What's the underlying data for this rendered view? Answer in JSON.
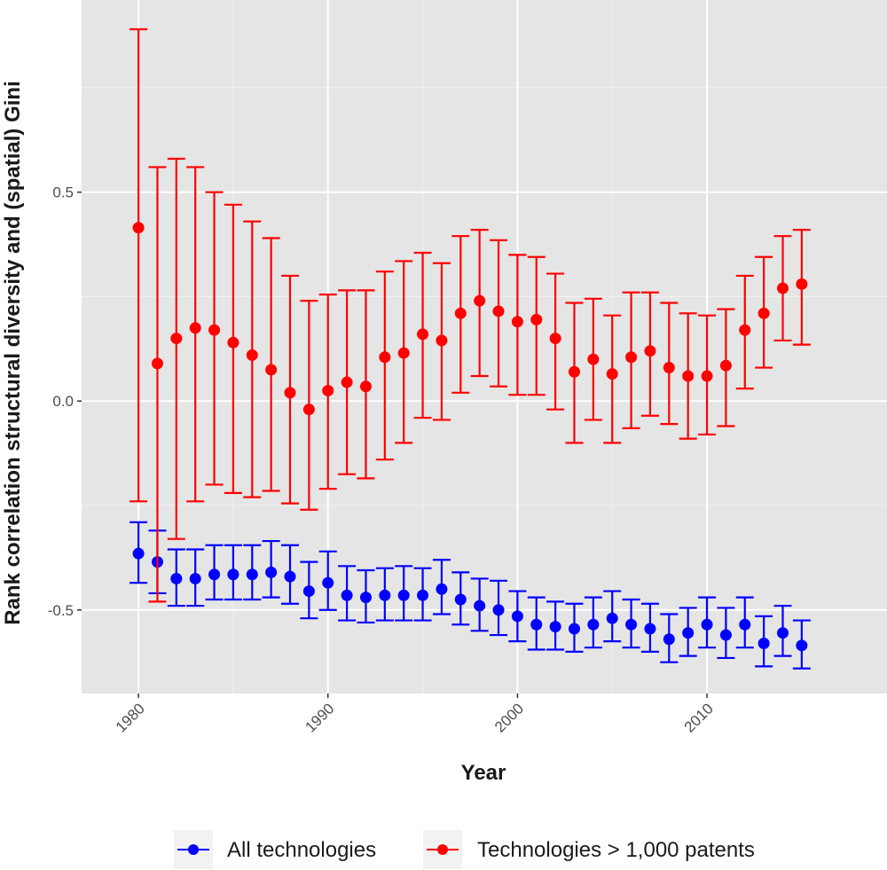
{
  "chart_data": {
    "type": "scatter",
    "title": "",
    "xlabel": "Year",
    "ylabel": "Rank correlation structural diversity and (spatial) Gini",
    "xlim": [
      1977,
      2019.5
    ],
    "ylim": [
      -0.7,
      0.96
    ],
    "x_ticks": [
      1980,
      1990,
      2000,
      2010
    ],
    "y_ticks": [
      0.5,
      0.0,
      -0.5
    ],
    "y_tick_labels": [
      "0.5",
      "0.0",
      "-0.5"
    ],
    "grid": true,
    "legend_position": "bottom",
    "x": [
      1980,
      1981,
      1982,
      1983,
      1984,
      1985,
      1986,
      1987,
      1988,
      1989,
      1990,
      1991,
      1992,
      1993,
      1994,
      1995,
      1996,
      1997,
      1998,
      1999,
      2000,
      2001,
      2002,
      2003,
      2004,
      2005,
      2006,
      2007,
      2008,
      2009,
      2010,
      2011,
      2012,
      2013,
      2014,
      2015
    ],
    "series": [
      {
        "name": "All technologies",
        "color": "#0000ff",
        "values": [
          -0.365,
          -0.385,
          -0.425,
          -0.425,
          -0.415,
          -0.415,
          -0.415,
          -0.41,
          -0.42,
          -0.455,
          -0.435,
          -0.465,
          -0.47,
          -0.465,
          -0.465,
          -0.465,
          -0.45,
          -0.475,
          -0.49,
          -0.5,
          -0.515,
          -0.535,
          -0.54,
          -0.545,
          -0.535,
          -0.52,
          -0.535,
          -0.545,
          -0.57,
          -0.555,
          -0.535,
          -0.56,
          -0.535,
          -0.58,
          -0.555,
          -0.585
        ],
        "lower": [
          -0.435,
          -0.46,
          -0.49,
          -0.49,
          -0.475,
          -0.475,
          -0.475,
          -0.47,
          -0.485,
          -0.52,
          -0.5,
          -0.525,
          -0.53,
          -0.525,
          -0.525,
          -0.525,
          -0.51,
          -0.535,
          -0.55,
          -0.56,
          -0.575,
          -0.595,
          -0.595,
          -0.6,
          -0.59,
          -0.575,
          -0.59,
          -0.6,
          -0.625,
          -0.61,
          -0.59,
          -0.615,
          -0.59,
          -0.635,
          -0.61,
          -0.64
        ],
        "upper": [
          -0.29,
          -0.31,
          -0.355,
          -0.355,
          -0.345,
          -0.345,
          -0.345,
          -0.335,
          -0.345,
          -0.385,
          -0.36,
          -0.395,
          -0.405,
          -0.4,
          -0.395,
          -0.4,
          -0.38,
          -0.41,
          -0.425,
          -0.43,
          -0.455,
          -0.47,
          -0.48,
          -0.485,
          -0.47,
          -0.455,
          -0.475,
          -0.485,
          -0.51,
          -0.495,
          -0.47,
          -0.495,
          -0.47,
          -0.515,
          -0.49,
          -0.525
        ]
      },
      {
        "name": "Technologies > 1,000 patents",
        "color": "#ff0000",
        "values": [
          0.415,
          0.09,
          0.15,
          0.175,
          0.17,
          0.14,
          0.11,
          0.075,
          0.02,
          -0.02,
          0.025,
          0.045,
          0.035,
          0.105,
          0.115,
          0.16,
          0.145,
          0.21,
          0.24,
          0.215,
          0.19,
          0.195,
          0.15,
          0.07,
          0.1,
          0.065,
          0.105,
          0.12,
          0.08,
          0.06,
          0.06,
          0.085,
          0.17,
          0.21,
          0.27,
          0.28
        ],
        "lower": [
          -0.24,
          -0.48,
          -0.33,
          -0.24,
          -0.2,
          -0.22,
          -0.23,
          -0.215,
          -0.245,
          -0.26,
          -0.21,
          -0.175,
          -0.185,
          -0.14,
          -0.1,
          -0.04,
          -0.045,
          0.02,
          0.06,
          0.035,
          0.015,
          0.015,
          -0.02,
          -0.1,
          -0.045,
          -0.1,
          -0.065,
          -0.035,
          -0.055,
          -0.09,
          -0.08,
          -0.06,
          0.03,
          0.08,
          0.145,
          0.135
        ],
        "upper": [
          0.89,
          0.56,
          0.58,
          0.56,
          0.5,
          0.47,
          0.43,
          0.39,
          0.3,
          0.24,
          0.255,
          0.265,
          0.265,
          0.31,
          0.335,
          0.355,
          0.33,
          0.395,
          0.41,
          0.385,
          0.35,
          0.345,
          0.305,
          0.235,
          0.245,
          0.205,
          0.26,
          0.26,
          0.235,
          0.21,
          0.205,
          0.22,
          0.3,
          0.345,
          0.395,
          0.41
        ]
      }
    ]
  }
}
